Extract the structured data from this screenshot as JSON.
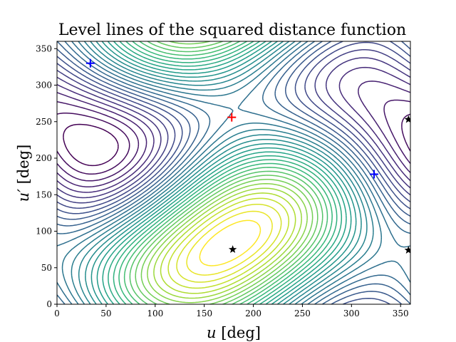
{
  "chart_data": {
    "type": "contour",
    "title": "Level lines of the squared distance function",
    "xlabel": {
      "var": "u",
      "unit": " [deg]"
    },
    "ylabel": {
      "var": "u′",
      "unit": " [deg]"
    },
    "xlim": [
      0,
      360
    ],
    "ylim": [
      0,
      360
    ],
    "xticks": [
      0,
      50,
      100,
      150,
      200,
      250,
      300,
      350
    ],
    "yticks": [
      0,
      50,
      100,
      150,
      200,
      250,
      300,
      350
    ],
    "colormap": "viridis",
    "grid": false,
    "markers": [
      {
        "kind": "plus",
        "color": "#ff0000",
        "x": 178,
        "y": 256
      },
      {
        "kind": "plus",
        "color": "#0000ff",
        "x": 34,
        "y": 330
      },
      {
        "kind": "plus",
        "color": "#0000ff",
        "x": 323,
        "y": 178
      },
      {
        "kind": "star",
        "color": "#000000",
        "x": 179,
        "y": 75
      },
      {
        "kind": "star",
        "color": "#000000",
        "x": 358,
        "y": 74
      },
      {
        "kind": "star",
        "color": "#000000",
        "x": 358,
        "y": 253
      }
    ]
  }
}
